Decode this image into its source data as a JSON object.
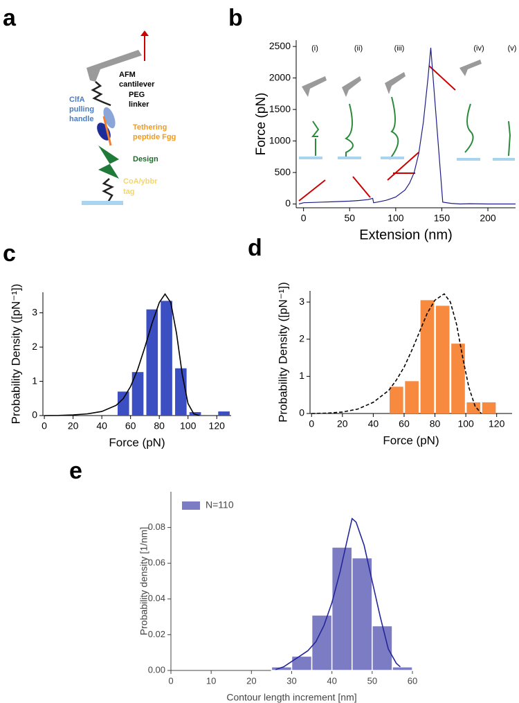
{
  "panel_labels": [
    "a",
    "b",
    "c",
    "d",
    "e"
  ],
  "diagram": {
    "cantilever": [
      "AFM",
      "cantilever"
    ],
    "linker": [
      "PEG",
      "linker"
    ],
    "handle": [
      "ClfA",
      "pulling",
      "handle"
    ],
    "peptide": [
      "Tethering",
      "peptide Fgg"
    ],
    "design": "Design",
    "tag": [
      "CoA/ybbr",
      "tag"
    ]
  },
  "chart_data": [
    {
      "type": "line",
      "xlabel": "Extension (nm)",
      "ylabel": "Force (pN)",
      "annotations": [
        "(i)",
        "(ii)",
        "(iii)",
        "(iv)",
        "(v)"
      ],
      "xlim": [
        -8,
        230
      ],
      "ylim": [
        -60,
        2600
      ],
      "xticks": [
        0,
        50,
        100,
        150,
        200
      ],
      "yticks": [
        0,
        500,
        1000,
        1500,
        2000,
        2500
      ],
      "series": [
        {
          "color": "#1c1c85",
          "x": [
            -5,
            0,
            10,
            20,
            30,
            40,
            50,
            60,
            70,
            75,
            76,
            80,
            90,
            100,
            110,
            115,
            120,
            125,
            130,
            135,
            138,
            151,
            160,
            170,
            180,
            200,
            220,
            230
          ],
          "values": [
            0,
            20,
            25,
            30,
            35,
            40,
            45,
            55,
            70,
            90,
            20,
            30,
            60,
            110,
            220,
            330,
            500,
            800,
            1300,
            2000,
            2480,
            30,
            10,
            0,
            5,
            0,
            0,
            0
          ]
        }
      ]
    },
    {
      "type": "histogram",
      "xlabel": "Force (pN)",
      "ylabel": "Probability Density ([pN⁻¹])",
      "xlim": [
        -1,
        130
      ],
      "ylim": [
        0,
        3.6
      ],
      "xticks": [
        0,
        20,
        40,
        60,
        80,
        100,
        120
      ],
      "yticks": [
        0,
        1,
        2,
        3
      ],
      "bins": [
        50,
        60,
        70,
        80,
        90,
        100,
        110,
        120,
        130
      ],
      "values": [
        0.7,
        1.27,
        3.1,
        3.35,
        1.38,
        0.1,
        0,
        0.12
      ],
      "color": "#3b4fc2",
      "fit": {
        "color": "#000000",
        "dashed": false,
        "x": [
          0,
          10,
          20,
          30,
          40,
          50,
          55,
          60,
          65,
          70,
          75,
          80,
          84,
          88,
          92,
          96,
          100,
          104,
          108
        ],
        "y": [
          0,
          0.005,
          0.02,
          0.05,
          0.12,
          0.3,
          0.5,
          0.85,
          1.35,
          2.0,
          2.7,
          3.3,
          3.55,
          3.3,
          2.4,
          1.2,
          0.35,
          0.05,
          0
        ]
      }
    },
    {
      "type": "histogram",
      "xlabel": "Force (pN)",
      "ylabel": "Probability Density ([pN⁻¹])",
      "xlim": [
        -1,
        130
      ],
      "ylim": [
        0,
        3.3
      ],
      "xticks": [
        0,
        20,
        40,
        60,
        80,
        100,
        120
      ],
      "yticks": [
        0,
        1,
        2,
        3
      ],
      "bins": [
        50,
        60,
        70,
        80,
        90,
        100,
        110,
        120
      ],
      "values": [
        0.72,
        0.87,
        3.05,
        2.9,
        1.88,
        0.3,
        0.3
      ],
      "color": "#f78a3e",
      "fit": {
        "color": "#000000",
        "dashed": true,
        "x": [
          0,
          10,
          20,
          30,
          40,
          50,
          55,
          60,
          65,
          70,
          75,
          80,
          86,
          90,
          94,
          98,
          102,
          106,
          110
        ],
        "y": [
          0,
          0.01,
          0.04,
          0.12,
          0.3,
          0.62,
          0.9,
          1.25,
          1.7,
          2.2,
          2.7,
          3.05,
          3.22,
          3.0,
          2.4,
          1.5,
          0.7,
          0.2,
          0
        ]
      }
    },
    {
      "type": "histogram",
      "xlabel": "Contour length increment [nm]",
      "ylabel": "Probability density [1/nm]",
      "xlim": [
        0,
        60
      ],
      "ylim": [
        0,
        0.1
      ],
      "xticks": [
        0,
        10,
        20,
        30,
        40,
        50,
        60
      ],
      "yticks": [
        {
          "value": 0,
          "label": "0.00"
        },
        {
          "value": 0.02,
          "label": "0.02"
        },
        {
          "value": 0.04,
          "label": "0.04"
        },
        {
          "value": 0.06,
          "label": "0.06"
        },
        {
          "value": 0.08,
          "label": "0.08"
        }
      ],
      "bins": [
        25,
        30,
        35,
        40,
        45,
        50,
        55,
        60
      ],
      "series": [
        {
          "name": "N=110",
          "color": "#7c7cc4",
          "values": [
            0.002,
            0.008,
            0.031,
            0.069,
            0.063,
            0.025,
            0.002
          ]
        }
      ],
      "fit": {
        "color": "#25259a",
        "dashed": false,
        "x": [
          26,
          28,
          30,
          32,
          34,
          36,
          38,
          40,
          42,
          44,
          45,
          46,
          48,
          50,
          52,
          54,
          56,
          57
        ],
        "y": [
          0.0005,
          0.002,
          0.005,
          0.008,
          0.011,
          0.016,
          0.025,
          0.038,
          0.055,
          0.075,
          0.085,
          0.083,
          0.07,
          0.05,
          0.03,
          0.012,
          0.004,
          0.002
        ]
      }
    }
  ]
}
